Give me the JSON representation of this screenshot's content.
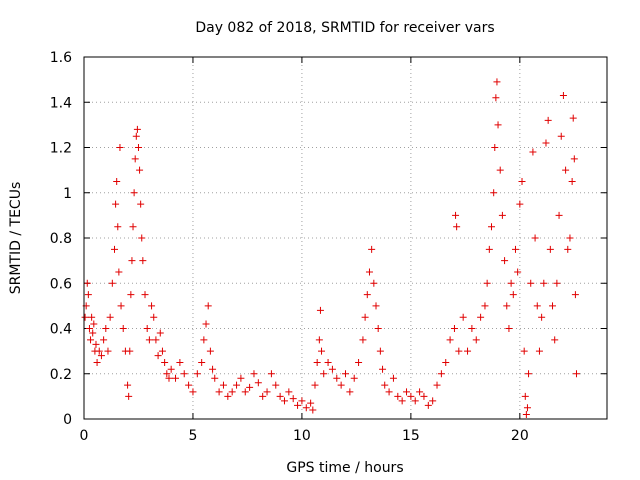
{
  "chart_data": {
    "type": "scatter",
    "title": "Day 082 of 2018, SRMTID for receiver vars",
    "xlabel": "GPS time / hours",
    "ylabel": "SRMTID / TECUs",
    "xlim": [
      0,
      24
    ],
    "ylim": [
      0,
      1.6
    ],
    "xticks": [
      0,
      5,
      10,
      15,
      20
    ],
    "xtick_labels": [
      "0",
      "5",
      "10",
      "15",
      "20"
    ],
    "yticks": [
      0,
      0.2,
      0.4,
      0.6,
      0.8,
      1.0,
      1.2,
      1.4,
      1.6
    ],
    "ytick_labels": [
      "0",
      "0.2",
      "0.4",
      "0.6",
      "0.8",
      "1",
      "1.2",
      "1.4",
      "1.6"
    ],
    "grid": true,
    "marker": "plus",
    "color": "#e00000",
    "series": [
      {
        "name": "SRMTID",
        "points": [
          [
            0.05,
            0.45
          ],
          [
            0.1,
            0.5
          ],
          [
            0.15,
            0.6
          ],
          [
            0.2,
            0.55
          ],
          [
            0.25,
            0.4
          ],
          [
            0.3,
            0.35
          ],
          [
            0.35,
            0.45
          ],
          [
            0.4,
            0.38
          ],
          [
            0.45,
            0.42
          ],
          [
            0.5,
            0.3
          ],
          [
            0.55,
            0.33
          ],
          [
            0.6,
            0.25
          ],
          [
            0.7,
            0.3
          ],
          [
            0.8,
            0.28
          ],
          [
            0.9,
            0.35
          ],
          [
            1.0,
            0.4
          ],
          [
            1.1,
            0.3
          ],
          [
            1.2,
            0.45
          ],
          [
            1.3,
            0.6
          ],
          [
            1.4,
            0.75
          ],
          [
            1.45,
            0.95
          ],
          [
            1.5,
            1.05
          ],
          [
            1.55,
            0.85
          ],
          [
            1.6,
            0.65
          ],
          [
            1.65,
            1.2
          ],
          [
            1.7,
            0.5
          ],
          [
            1.8,
            0.4
          ],
          [
            1.9,
            0.3
          ],
          [
            2.0,
            0.15
          ],
          [
            2.05,
            0.1
          ],
          [
            2.1,
            0.3
          ],
          [
            2.15,
            0.55
          ],
          [
            2.2,
            0.7
          ],
          [
            2.25,
            0.85
          ],
          [
            2.3,
            1.0
          ],
          [
            2.35,
            1.15
          ],
          [
            2.4,
            1.25
          ],
          [
            2.45,
            1.28
          ],
          [
            2.5,
            1.2
          ],
          [
            2.55,
            1.1
          ],
          [
            2.6,
            0.95
          ],
          [
            2.65,
            0.8
          ],
          [
            2.7,
            0.7
          ],
          [
            2.8,
            0.55
          ],
          [
            2.9,
            0.4
          ],
          [
            3.0,
            0.35
          ],
          [
            3.1,
            0.5
          ],
          [
            3.2,
            0.45
          ],
          [
            3.3,
            0.35
          ],
          [
            3.4,
            0.28
          ],
          [
            3.5,
            0.38
          ],
          [
            3.6,
            0.3
          ],
          [
            3.7,
            0.25
          ],
          [
            3.8,
            0.2
          ],
          [
            3.9,
            0.18
          ],
          [
            4.0,
            0.22
          ],
          [
            4.2,
            0.18
          ],
          [
            4.4,
            0.25
          ],
          [
            4.6,
            0.2
          ],
          [
            4.8,
            0.15
          ],
          [
            5.0,
            0.12
          ],
          [
            5.2,
            0.2
          ],
          [
            5.4,
            0.25
          ],
          [
            5.5,
            0.35
          ],
          [
            5.6,
            0.42
          ],
          [
            5.7,
            0.5
          ],
          [
            5.8,
            0.3
          ],
          [
            5.9,
            0.22
          ],
          [
            6.0,
            0.18
          ],
          [
            6.2,
            0.12
          ],
          [
            6.4,
            0.15
          ],
          [
            6.6,
            0.1
          ],
          [
            6.8,
            0.12
          ],
          [
            7.0,
            0.15
          ],
          [
            7.2,
            0.18
          ],
          [
            7.4,
            0.12
          ],
          [
            7.6,
            0.14
          ],
          [
            7.8,
            0.2
          ],
          [
            8.0,
            0.16
          ],
          [
            8.2,
            0.1
          ],
          [
            8.4,
            0.12
          ],
          [
            8.6,
            0.2
          ],
          [
            8.8,
            0.15
          ],
          [
            9.0,
            0.1
          ],
          [
            9.2,
            0.08
          ],
          [
            9.4,
            0.12
          ],
          [
            9.6,
            0.09
          ],
          [
            9.8,
            0.06
          ],
          [
            10.0,
            0.08
          ],
          [
            10.2,
            0.05
          ],
          [
            10.4,
            0.07
          ],
          [
            10.5,
            0.04
          ],
          [
            10.6,
            0.15
          ],
          [
            10.7,
            0.25
          ],
          [
            10.8,
            0.35
          ],
          [
            10.85,
            0.48
          ],
          [
            10.9,
            0.3
          ],
          [
            11.0,
            0.2
          ],
          [
            11.2,
            0.25
          ],
          [
            11.4,
            0.22
          ],
          [
            11.6,
            0.18
          ],
          [
            11.8,
            0.15
          ],
          [
            12.0,
            0.2
          ],
          [
            12.2,
            0.12
          ],
          [
            12.4,
            0.18
          ],
          [
            12.6,
            0.25
          ],
          [
            12.8,
            0.35
          ],
          [
            12.9,
            0.45
          ],
          [
            13.0,
            0.55
          ],
          [
            13.1,
            0.65
          ],
          [
            13.2,
            0.75
          ],
          [
            13.3,
            0.6
          ],
          [
            13.4,
            0.5
          ],
          [
            13.5,
            0.4
          ],
          [
            13.6,
            0.3
          ],
          [
            13.7,
            0.22
          ],
          [
            13.8,
            0.15
          ],
          [
            14.0,
            0.12
          ],
          [
            14.2,
            0.18
          ],
          [
            14.4,
            0.1
          ],
          [
            14.6,
            0.08
          ],
          [
            14.8,
            0.12
          ],
          [
            15.0,
            0.1
          ],
          [
            15.2,
            0.08
          ],
          [
            15.4,
            0.12
          ],
          [
            15.6,
            0.1
          ],
          [
            15.8,
            0.06
          ],
          [
            16.0,
            0.08
          ],
          [
            16.2,
            0.15
          ],
          [
            16.4,
            0.2
          ],
          [
            16.6,
            0.25
          ],
          [
            16.8,
            0.35
          ],
          [
            17.0,
            0.4
          ],
          [
            17.05,
            0.9
          ],
          [
            17.1,
            0.85
          ],
          [
            17.2,
            0.3
          ],
          [
            17.4,
            0.45
          ],
          [
            17.6,
            0.3
          ],
          [
            17.8,
            0.4
          ],
          [
            18.0,
            0.35
          ],
          [
            18.2,
            0.45
          ],
          [
            18.4,
            0.5
          ],
          [
            18.5,
            0.6
          ],
          [
            18.6,
            0.75
          ],
          [
            18.7,
            0.85
          ],
          [
            18.8,
            1.0
          ],
          [
            18.85,
            1.2
          ],
          [
            18.9,
            1.42
          ],
          [
            18.95,
            1.49
          ],
          [
            19.0,
            1.3
          ],
          [
            19.1,
            1.1
          ],
          [
            19.2,
            0.9
          ],
          [
            19.3,
            0.7
          ],
          [
            19.4,
            0.5
          ],
          [
            19.5,
            0.4
          ],
          [
            19.6,
            0.6
          ],
          [
            19.7,
            0.55
          ],
          [
            19.8,
            0.75
          ],
          [
            19.9,
            0.65
          ],
          [
            20.0,
            0.95
          ],
          [
            20.1,
            1.05
          ],
          [
            20.2,
            0.3
          ],
          [
            20.25,
            0.1
          ],
          [
            20.3,
            0.02
          ],
          [
            20.35,
            0.05
          ],
          [
            20.4,
            0.2
          ],
          [
            20.5,
            0.6
          ],
          [
            20.6,
            1.18
          ],
          [
            20.7,
            0.8
          ],
          [
            20.8,
            0.5
          ],
          [
            20.9,
            0.3
          ],
          [
            21.0,
            0.45
          ],
          [
            21.1,
            0.6
          ],
          [
            21.2,
            1.22
          ],
          [
            21.3,
            1.32
          ],
          [
            21.4,
            0.75
          ],
          [
            21.5,
            0.5
          ],
          [
            21.6,
            0.35
          ],
          [
            21.7,
            0.6
          ],
          [
            21.8,
            0.9
          ],
          [
            21.9,
            1.25
          ],
          [
            22.0,
            1.43
          ],
          [
            22.1,
            1.1
          ],
          [
            22.2,
            0.75
          ],
          [
            22.3,
            0.8
          ],
          [
            22.4,
            1.05
          ],
          [
            22.45,
            1.33
          ],
          [
            22.5,
            1.15
          ],
          [
            22.55,
            0.55
          ],
          [
            22.6,
            0.2
          ]
        ]
      }
    ]
  }
}
